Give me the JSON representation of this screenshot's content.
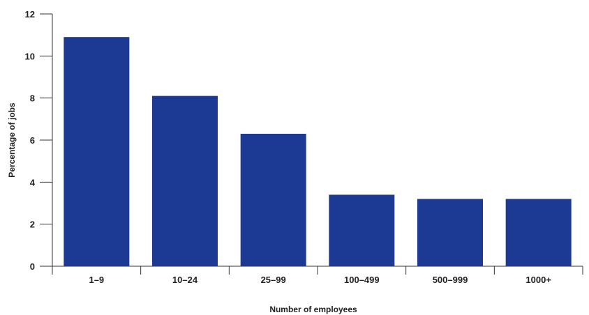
{
  "chart_data": {
    "type": "bar",
    "title": "",
    "xlabel": "Number of employees",
    "ylabel": "Percentage of jobs",
    "categories": [
      "1–9",
      "10–24",
      "25–99",
      "100–499",
      "500–999",
      "1000+"
    ],
    "values": [
      10.9,
      8.1,
      6.3,
      3.4,
      3.2,
      3.2
    ],
    "ylim": [
      0,
      12
    ],
    "yticks": [
      0,
      2,
      4,
      6,
      8,
      10,
      12
    ],
    "grid": false,
    "legend": "none",
    "bar_color": "#1c3a94"
  }
}
